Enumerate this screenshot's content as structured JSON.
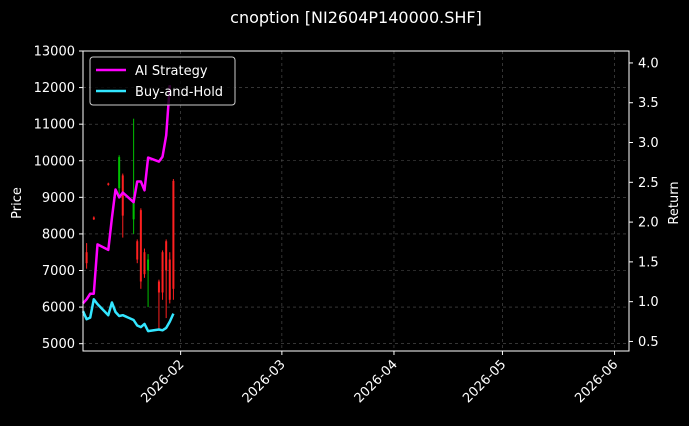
{
  "chart_data": {
    "type": "line",
    "title": "cnoption [NI2604P140000.SHF]",
    "ylabel_left": "Price",
    "ylabel_right": "Return",
    "xlabel": "",
    "x_ticks": [
      "2026-02",
      "2026-03",
      "2026-04",
      "2026-05",
      "2026-06"
    ],
    "x_range": [
      "2026-01-05",
      "2026-06-05"
    ],
    "y_left_ticks": [
      5000,
      6000,
      7000,
      8000,
      9000,
      10000,
      11000,
      12000,
      13000
    ],
    "y_left_range": [
      4800,
      13000
    ],
    "y_right_ticks": [
      "0.5",
      "1.0",
      "1.5",
      "2.0",
      "2.5",
      "3.0",
      "3.5",
      "4.0"
    ],
    "y_right_range": [
      0.38,
      4.15
    ],
    "grid": true,
    "legend_position": "upper-left",
    "series": [
      {
        "name": "AI Strategy",
        "axis": "right",
        "color": "#ff00ff",
        "points": [
          [
            "2026-01-05",
            0.98
          ],
          [
            "2026-01-06",
            1.03
          ],
          [
            "2026-01-07",
            1.1
          ],
          [
            "2026-01-08",
            1.1
          ],
          [
            "2026-01-09",
            1.72
          ],
          [
            "2026-01-12",
            1.65
          ],
          [
            "2026-01-13",
            2.05
          ],
          [
            "2026-01-14",
            2.41
          ],
          [
            "2026-01-15",
            2.31
          ],
          [
            "2026-01-16",
            2.37
          ],
          [
            "2026-01-19",
            2.25
          ],
          [
            "2026-01-20",
            2.51
          ],
          [
            "2026-01-21",
            2.51
          ],
          [
            "2026-01-22",
            2.4
          ],
          [
            "2026-01-23",
            2.81
          ],
          [
            "2026-01-26",
            2.76
          ],
          [
            "2026-01-27",
            2.82
          ],
          [
            "2026-01-28",
            3.09
          ],
          [
            "2026-01-29",
            3.72
          ]
        ]
      },
      {
        "name": "Buy-and-Hold",
        "axis": "right",
        "color": "#33e6ff",
        "points": [
          [
            "2026-01-05",
            0.88
          ],
          [
            "2026-01-06",
            0.78
          ],
          [
            "2026-01-07",
            0.8
          ],
          [
            "2026-01-08",
            1.03
          ],
          [
            "2026-01-09",
            0.97
          ],
          [
            "2026-01-12",
            0.83
          ],
          [
            "2026-01-13",
            0.99
          ],
          [
            "2026-01-14",
            0.87
          ],
          [
            "2026-01-15",
            0.82
          ],
          [
            "2026-01-16",
            0.83
          ],
          [
            "2026-01-19",
            0.77
          ],
          [
            "2026-01-20",
            0.7
          ],
          [
            "2026-01-21",
            0.68
          ],
          [
            "2026-01-22",
            0.72
          ],
          [
            "2026-01-23",
            0.63
          ],
          [
            "2026-01-26",
            0.65
          ],
          [
            "2026-01-27",
            0.64
          ],
          [
            "2026-01-28",
            0.67
          ],
          [
            "2026-01-29",
            0.75
          ],
          [
            "2026-01-30",
            0.85
          ]
        ]
      }
    ],
    "candlesticks": {
      "axis": "left",
      "up_color": "#00c000",
      "down_color": "#ff2020",
      "bars": [
        {
          "date": "2026-01-06",
          "open": 7500,
          "high": 7750,
          "low": 7050,
          "close": 7200
        },
        {
          "date": "2026-01-08",
          "open": 8450,
          "high": 8480,
          "low": 8380,
          "close": 8400
        },
        {
          "date": "2026-01-12",
          "open": 9380,
          "high": 9400,
          "low": 9320,
          "close": 9340
        },
        {
          "date": "2026-01-15",
          "open": 9250,
          "high": 10150,
          "low": 9000,
          "close": 10100
        },
        {
          "date": "2026-01-16",
          "open": 9600,
          "high": 9650,
          "low": 7900,
          "close": 8500
        },
        {
          "date": "2026-01-19",
          "open": 8400,
          "high": 11150,
          "low": 8000,
          "close": 9000
        },
        {
          "date": "2026-01-20",
          "open": 7800,
          "high": 7850,
          "low": 7200,
          "close": 7300
        },
        {
          "date": "2026-01-21",
          "open": 8650,
          "high": 8700,
          "low": 6500,
          "close": 6700
        },
        {
          "date": "2026-01-22",
          "open": 7500,
          "high": 7600,
          "low": 6800,
          "close": 6900
        },
        {
          "date": "2026-01-23",
          "open": 7000,
          "high": 7450,
          "low": 6000,
          "close": 7300
        },
        {
          "date": "2026-01-26",
          "open": 6700,
          "high": 6750,
          "low": 5400,
          "close": 6400
        },
        {
          "date": "2026-01-27",
          "open": 7500,
          "high": 7550,
          "low": 6200,
          "close": 6400
        },
        {
          "date": "2026-01-28",
          "open": 7800,
          "high": 7850,
          "low": 5700,
          "close": 7000
        },
        {
          "date": "2026-01-29",
          "open": 7300,
          "high": 7500,
          "low": 6100,
          "close": 6200
        },
        {
          "date": "2026-01-30",
          "open": 9450,
          "high": 9500,
          "low": 6200,
          "close": 6500
        }
      ]
    }
  }
}
